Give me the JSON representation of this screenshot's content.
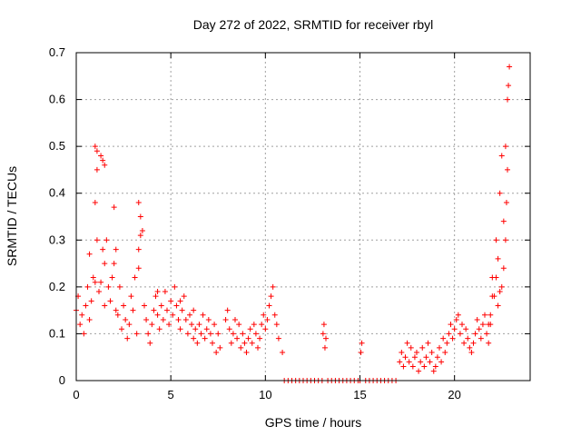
{
  "chart_data": {
    "type": "scatter",
    "title": "Day 272 of 2022, SRMTID for receiver rbyl",
    "xlabel": "GPS time / hours",
    "ylabel": "SRMTID / TECUs",
    "xlim": [
      0,
      24
    ],
    "ylim": [
      0,
      0.7
    ],
    "xticks": [
      "0",
      "5",
      "10",
      "15",
      "20"
    ],
    "yticks": [
      "0",
      "0.1",
      "0.2",
      "0.3",
      "0.4",
      "0.5",
      "0.6",
      "0.7"
    ],
    "grid": true,
    "marker": "+",
    "color": "#ff0000",
    "series": [
      {
        "name": "SRMTID",
        "x": [
          0.0,
          0.1,
          0.2,
          0.3,
          0.4,
          0.5,
          0.6,
          0.7,
          0.8,
          0.9,
          1.0,
          1.0,
          1.1,
          1.1,
          1.2,
          1.3,
          1.4,
          1.4,
          1.5,
          1.5,
          1.6,
          1.7,
          1.8,
          1.9,
          2.0,
          2.1,
          2.2,
          2.3,
          2.4,
          2.5,
          2.6,
          2.7,
          2.8,
          2.9,
          3.0,
          3.1,
          3.2,
          3.3,
          3.3,
          3.4,
          3.5,
          3.6,
          3.7,
          3.8,
          3.9,
          4.0,
          4.1,
          4.2,
          4.3,
          4.4,
          4.5,
          4.6,
          4.7,
          4.8,
          4.9,
          5.0,
          5.1,
          5.2,
          5.3,
          5.4,
          5.5,
          5.6,
          5.7,
          5.8,
          5.9,
          6.0,
          6.1,
          6.2,
          6.3,
          6.4,
          6.5,
          6.6,
          6.7,
          6.8,
          6.9,
          7.0,
          7.1,
          7.2,
          7.3,
          7.4,
          7.5,
          7.6,
          7.9,
          8.0,
          8.1,
          8.2,
          8.3,
          8.4,
          8.5,
          8.6,
          8.7,
          8.8,
          8.9,
          9.0,
          9.1,
          9.2,
          9.3,
          9.4,
          9.5,
          9.6,
          9.7,
          9.8,
          9.9,
          10.0,
          10.1,
          10.2,
          10.3,
          10.4,
          10.5,
          10.6,
          10.7,
          10.9,
          11.0,
          11.2,
          11.4,
          11.6,
          11.8,
          12.0,
          12.2,
          12.4,
          12.6,
          12.8,
          13.0,
          13.05,
          13.1,
          13.15,
          13.2,
          13.3,
          13.5,
          13.7,
          13.9,
          14.1,
          14.3,
          14.5,
          14.7,
          14.9,
          15.0,
          15.05,
          15.1,
          15.3,
          15.5,
          15.7,
          15.9,
          16.1,
          16.3,
          16.5,
          16.7,
          16.9,
          17.1,
          17.2,
          17.3,
          17.4,
          17.5,
          17.6,
          17.7,
          17.8,
          17.9,
          18.0,
          18.1,
          18.2,
          18.3,
          18.4,
          18.5,
          18.6,
          18.7,
          18.8,
          18.9,
          19.0,
          19.1,
          19.2,
          19.3,
          19.4,
          19.5,
          19.6,
          19.7,
          19.8,
          19.9,
          20.0,
          20.1,
          20.2,
          20.3,
          20.4,
          20.5,
          20.6,
          20.7,
          20.8,
          20.9,
          21.0,
          21.1,
          21.2,
          21.3,
          21.4,
          21.5,
          21.6,
          21.7,
          21.8,
          21.9,
          22.0,
          22.1,
          22.2,
          22.3,
          22.4,
          22.5,
          22.6,
          22.7,
          22.8,
          22.9,
          22.85,
          22.8,
          22.75,
          22.7,
          22.6,
          22.5,
          22.4,
          22.3,
          22.2,
          22.0,
          21.9,
          21.8,
          1.0,
          1.1,
          1.3,
          1.5,
          3.3,
          3.4,
          2.0,
          2.1,
          0.7,
          4.3,
          5.5,
          6.2
        ],
        "y": [
          0.15,
          0.18,
          0.12,
          0.14,
          0.1,
          0.16,
          0.2,
          0.13,
          0.17,
          0.22,
          0.38,
          0.5,
          0.45,
          0.3,
          0.19,
          0.21,
          0.47,
          0.28,
          0.25,
          0.16,
          0.3,
          0.2,
          0.17,
          0.22,
          0.25,
          0.15,
          0.14,
          0.2,
          0.11,
          0.16,
          0.13,
          0.09,
          0.12,
          0.18,
          0.15,
          0.22,
          0.1,
          0.28,
          0.38,
          0.35,
          0.32,
          0.16,
          0.13,
          0.1,
          0.08,
          0.12,
          0.15,
          0.18,
          0.14,
          0.11,
          0.16,
          0.13,
          0.19,
          0.15,
          0.12,
          0.17,
          0.14,
          0.2,
          0.16,
          0.13,
          0.11,
          0.15,
          0.18,
          0.13,
          0.1,
          0.14,
          0.12,
          0.09,
          0.11,
          0.08,
          0.12,
          0.1,
          0.14,
          0.09,
          0.11,
          0.13,
          0.1,
          0.08,
          0.12,
          0.06,
          0.1,
          0.07,
          0.13,
          0.15,
          0.11,
          0.08,
          0.1,
          0.13,
          0.09,
          0.12,
          0.07,
          0.1,
          0.08,
          0.06,
          0.09,
          0.11,
          0.08,
          0.12,
          0.1,
          0.07,
          0.09,
          0.12,
          0.14,
          0.11,
          0.13,
          0.16,
          0.18,
          0.2,
          0.14,
          0.12,
          0.09,
          0.06,
          0.0,
          0.0,
          0.0,
          0.0,
          0.0,
          0.0,
          0.0,
          0.0,
          0.0,
          0.0,
          0.0,
          0.1,
          0.12,
          0.07,
          0.09,
          0.0,
          0.0,
          0.0,
          0.0,
          0.0,
          0.0,
          0.0,
          0.0,
          0.0,
          0.0,
          0.06,
          0.08,
          0.0,
          0.0,
          0.0,
          0.0,
          0.0,
          0.0,
          0.0,
          0.0,
          0.0,
          0.04,
          0.06,
          0.03,
          0.05,
          0.08,
          0.04,
          0.07,
          0.03,
          0.05,
          0.06,
          0.02,
          0.04,
          0.07,
          0.03,
          0.05,
          0.08,
          0.04,
          0.06,
          0.02,
          0.03,
          0.05,
          0.07,
          0.04,
          0.09,
          0.06,
          0.08,
          0.1,
          0.12,
          0.09,
          0.11,
          0.13,
          0.14,
          0.1,
          0.12,
          0.08,
          0.11,
          0.09,
          0.07,
          0.06,
          0.08,
          0.1,
          0.13,
          0.11,
          0.09,
          0.12,
          0.14,
          0.1,
          0.08,
          0.12,
          0.22,
          0.18,
          0.3,
          0.26,
          0.4,
          0.48,
          0.34,
          0.5,
          0.6,
          0.67,
          0.63,
          0.45,
          0.38,
          0.3,
          0.24,
          0.2,
          0.19,
          0.16,
          0.22,
          0.18,
          0.14,
          0.12,
          0.21,
          0.49,
          0.48,
          0.46,
          0.24,
          0.31,
          0.37,
          0.28,
          0.27,
          0.19,
          0.17,
          0.15
        ]
      }
    ]
  }
}
